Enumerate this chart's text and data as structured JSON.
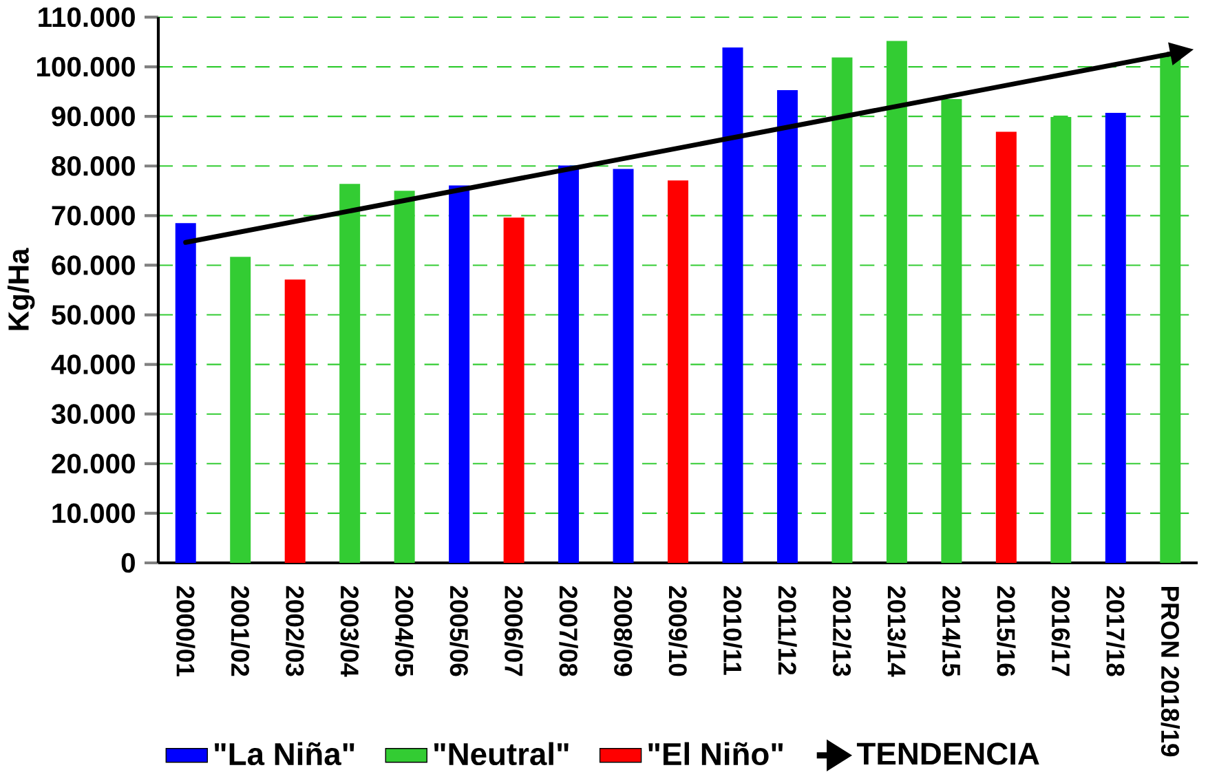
{
  "chart_data": {
    "type": "bar",
    "ylabel": "Kg/Ha",
    "categories": [
      "2000/01",
      "2001/02",
      "2002/03",
      "2003/04",
      "2004/05",
      "2005/06",
      "2006/07",
      "2007/08",
      "2008/09",
      "2009/10",
      "2010/11",
      "2011/12",
      "2012/13",
      "2013/14",
      "2014/15",
      "2015/16",
      "2016/17",
      "2017/18",
      "PRON 2018/19"
    ],
    "series": [
      {
        "name": "\"La Niña\"",
        "color": "#0000ff",
        "values": [
          68500,
          null,
          null,
          null,
          null,
          76100,
          null,
          80100,
          79400,
          null,
          103900,
          95300,
          null,
          null,
          null,
          null,
          null,
          90700,
          null
        ]
      },
      {
        "name": "\"Neutral\"",
        "color": "#33cc33",
        "values": [
          null,
          61700,
          null,
          76400,
          75000,
          null,
          null,
          null,
          null,
          null,
          null,
          null,
          101900,
          105200,
          93500,
          null,
          89900,
          null,
          102700
        ]
      },
      {
        "name": "\"El Niño\"",
        "color": "#ff0000",
        "values": [
          null,
          null,
          57100,
          null,
          null,
          null,
          69600,
          null,
          null,
          77100,
          null,
          null,
          null,
          null,
          null,
          86900,
          null,
          null,
          null
        ]
      },
      {
        "name": "TENDENCIA",
        "type": "line",
        "color": "#000000",
        "x": [
          "2000/01",
          "PRON 2018/19"
        ],
        "values": [
          64600,
          102600
        ]
      }
    ],
    "ylim": [
      0,
      110000
    ],
    "yticks": [
      {
        "value": 0,
        "label": "0"
      },
      {
        "value": 10000,
        "label": "10.000"
      },
      {
        "value": 20000,
        "label": "20.000"
      },
      {
        "value": 30000,
        "label": "30.000"
      },
      {
        "value": 40000,
        "label": "40.000"
      },
      {
        "value": 50000,
        "label": "50.000"
      },
      {
        "value": 60000,
        "label": "60.000"
      },
      {
        "value": 70000,
        "label": "70.000"
      },
      {
        "value": 80000,
        "label": "80.000"
      },
      {
        "value": 90000,
        "label": "90.000"
      },
      {
        "value": 100000,
        "label": "100.000"
      },
      {
        "value": 110000,
        "label": "110.000"
      }
    ],
    "grid": "y",
    "legend": "bottom"
  }
}
